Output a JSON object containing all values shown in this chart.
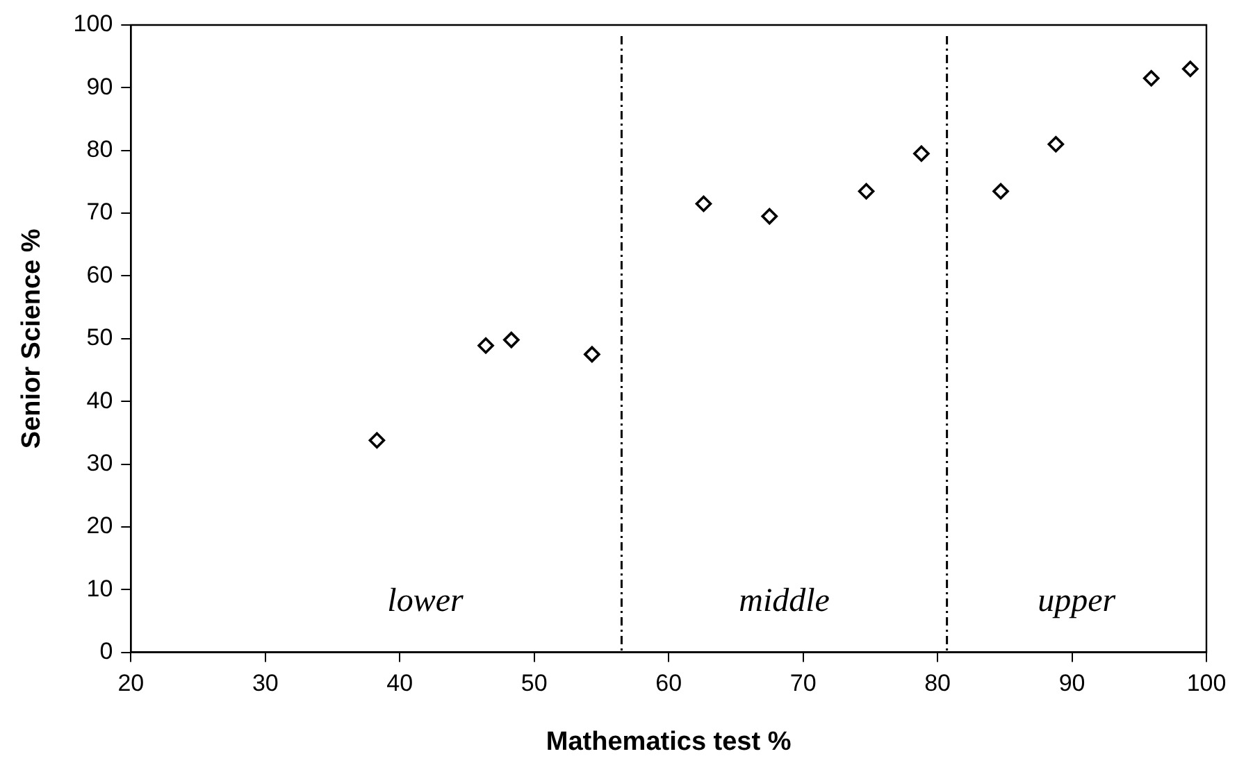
{
  "chart_data": {
    "type": "scatter",
    "xlabel": "Mathematics test %",
    "ylabel": "Senior Science %",
    "x": [
      38.3,
      46.4,
      48.3,
      54.3,
      62.6,
      67.5,
      74.7,
      78.8,
      84.7,
      88.8,
      95.9,
      98.8
    ],
    "series": [
      {
        "color": "#000000",
        "values": [
          33.8,
          48.9,
          49.8,
          47.5,
          71.5,
          69.5,
          73.5,
          79.5,
          73.5,
          81,
          91.5,
          93
        ]
      }
    ],
    "xlim": [
      20,
      100
    ],
    "ylim": [
      0,
      100
    ],
    "xticks": [
      20,
      30,
      40,
      50,
      60,
      70,
      80,
      90,
      100
    ],
    "yticks": [
      0,
      10,
      20,
      30,
      40,
      50,
      60,
      70,
      80,
      90,
      100
    ],
    "marker": "diamond",
    "grid": false,
    "legend": false,
    "ref_lines": [
      {
        "axis": "x",
        "value": 56.5,
        "color": "#000000",
        "line_style": "dashed"
      },
      {
        "axis": "x",
        "value": 80.7,
        "color": "#000000",
        "line_style": "dashed"
      }
    ],
    "annotations": [
      "lower",
      "middle",
      "upper"
    ]
  }
}
